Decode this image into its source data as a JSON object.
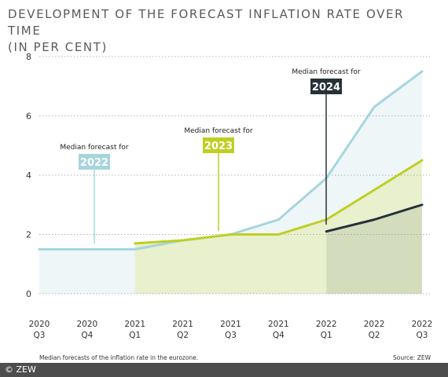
{
  "chart_data": {
    "type": "area",
    "title_line1": "DEVELOPMENT OF THE FORECAST INFLATION RATE OVER TIME",
    "title_line2": "(IN PER CENT)",
    "categories": [
      {
        "year": "2020",
        "q": "Q3"
      },
      {
        "year": "2020",
        "q": "Q4"
      },
      {
        "year": "2021",
        "q": "Q1"
      },
      {
        "year": "2021",
        "q": "Q2"
      },
      {
        "year": "2021",
        "q": "Q3"
      },
      {
        "year": "2021",
        "q": "Q4"
      },
      {
        "year": "2022",
        "q": "Q1"
      },
      {
        "year": "2022",
        "q": "Q2"
      },
      {
        "year": "2022",
        "q": "Q3"
      }
    ],
    "ylim": [
      0,
      8
    ],
    "yticks": [
      0,
      2,
      4,
      6,
      8
    ],
    "grid": true,
    "series": [
      {
        "key": "2022",
        "color": "#a6d5dd",
        "fill": "#eef6f8",
        "values": [
          1.5,
          1.5,
          1.5,
          1.8,
          2.0,
          2.5,
          3.9,
          6.3,
          7.5
        ]
      },
      {
        "key": "2023",
        "color": "#bfcf22",
        "fill": "#e8f0cd",
        "values": [
          null,
          null,
          1.7,
          1.8,
          2.0,
          2.0,
          2.5,
          3.5,
          4.5
        ]
      },
      {
        "key": "2024",
        "color": "#263238",
        "fill": "#d3ddbd",
        "values": [
          null,
          null,
          null,
          null,
          null,
          null,
          2.1,
          2.5,
          3.0
        ]
      }
    ],
    "annotations": [
      {
        "text": "Median forecast for",
        "label": "2022",
        "color": "#a6d5dd"
      },
      {
        "text": "Median forecast for",
        "label": "2023",
        "color": "#bfcf22"
      },
      {
        "text": "Median forecast for",
        "label": "2024",
        "color": "#263238"
      }
    ]
  },
  "footnote": "Median forecasts of the inflation rate in the eurozone.",
  "source": "Source: ZEW",
  "footer": "© ZEW"
}
